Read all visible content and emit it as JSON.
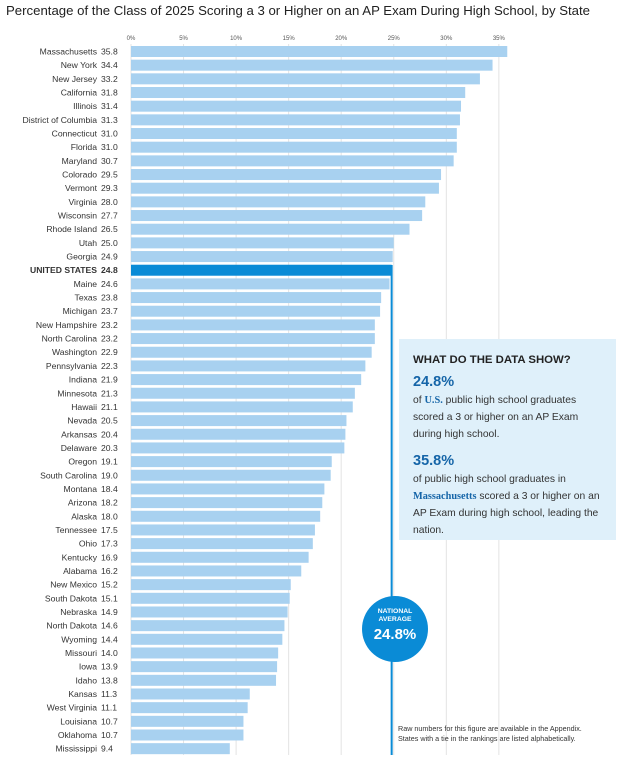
{
  "chart_data": {
    "type": "bar",
    "orientation": "horizontal",
    "title": "Percentage of the Class of 2025 Scoring a 3 or Higher on an AP Exam During High School, by State",
    "xlim": [
      0,
      35.8
    ],
    "ticks": [
      "0%",
      "5%",
      "10%",
      "15%",
      "20%",
      "25%",
      "30%",
      "35%"
    ],
    "tick_values": [
      0,
      5,
      10,
      15,
      20,
      25,
      30,
      35
    ],
    "grid": true,
    "colors": {
      "bar": "#a8d1f0",
      "highlight": "#0a8bd6",
      "highlight_text": "#1565a8"
    },
    "highlight": "UNITED STATES",
    "categories": [
      "Massachusetts",
      "New York",
      "New Jersey",
      "California",
      "Illinois",
      "District of Columbia",
      "Connecticut",
      "Florida",
      "Maryland",
      "Colorado",
      "Vermont",
      "Virginia",
      "Wisconsin",
      "Rhode Island",
      "Utah",
      "Georgia",
      "UNITED STATES",
      "Maine",
      "Texas",
      "Michigan",
      "New Hampshire",
      "North Carolina",
      "Washington",
      "Pennsylvania",
      "Indiana",
      "Minnesota",
      "Hawaii",
      "Nevada",
      "Arkansas",
      "Delaware",
      "Oregon",
      "South Carolina",
      "Montana",
      "Arizona",
      "Alaska",
      "Tennessee",
      "Ohio",
      "Kentucky",
      "Alabama",
      "New Mexico",
      "South Dakota",
      "Nebraska",
      "North Dakota",
      "Wyoming",
      "Missouri",
      "Iowa",
      "Idaho",
      "Kansas",
      "West Virginia",
      "Louisiana",
      "Oklahoma",
      "Mississippi"
    ],
    "values": [
      35.8,
      34.4,
      33.2,
      31.8,
      31.4,
      31.3,
      31.0,
      31.0,
      30.7,
      29.5,
      29.3,
      28.0,
      27.7,
      26.5,
      25.0,
      24.9,
      24.8,
      24.6,
      23.8,
      23.7,
      23.2,
      23.2,
      22.9,
      22.3,
      21.9,
      21.3,
      21.1,
      20.5,
      20.4,
      20.3,
      19.1,
      19.0,
      18.4,
      18.2,
      18.0,
      17.5,
      17.3,
      16.9,
      16.2,
      15.2,
      15.1,
      14.9,
      14.6,
      14.4,
      14.0,
      13.9,
      13.8,
      11.3,
      11.1,
      10.7,
      10.7,
      9.4
    ],
    "reference_line": {
      "value": 24.8,
      "label": "NATIONAL AVERAGE",
      "value_label": "24.8%"
    }
  },
  "callout": {
    "heading": "WHAT DO THE DATA SHOW?",
    "stat1": "24.8%",
    "stat1_pre": "of ",
    "stat1_em": "U.S.",
    "stat1_post": " public high school graduates scored a 3 or higher on an AP Exam during high school.",
    "stat2": "35.8%",
    "stat2_pre": "of public high school graduates in ",
    "stat2_em": "Massachusetts",
    "stat2_post": " scored a 3 or higher on an AP Exam during high school, leading the nation."
  },
  "note": [
    "Raw numbers for this figure are available in the Appendix.",
    "States with a tie in the rankings are listed alphabetically."
  ]
}
